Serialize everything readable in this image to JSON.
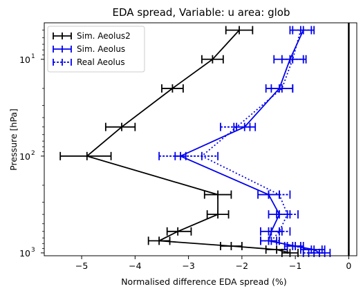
{
  "chart_data": {
    "type": "line",
    "title": "EDA spread, Variable: u area: glob",
    "xlabel": "Normalised difference EDA spread (%)",
    "ylabel": "Pressure [hPa]",
    "xlim": [
      -5.7,
      0.15
    ],
    "ylim": [
      1070,
      4.2
    ],
    "yscale": "log-inverted",
    "grid": false,
    "legend_position": "top-left",
    "x_ticks": [
      {
        "value": -5,
        "label": "−5"
      },
      {
        "value": -4,
        "label": "−4"
      },
      {
        "value": -3,
        "label": "−3"
      },
      {
        "value": -2,
        "label": "−2"
      },
      {
        "value": -1,
        "label": "−1"
      },
      {
        "value": 0,
        "label": "0"
      }
    ],
    "y_ticks": [
      {
        "value": 10,
        "base": "10",
        "exp": "1"
      },
      {
        "value": 100,
        "base": "10",
        "exp": "2"
      },
      {
        "value": 1000,
        "base": "10",
        "exp": "3"
      }
    ],
    "reference_line_x": 0,
    "series": [
      {
        "name": "Sim. Aeolus2",
        "color": "#000000",
        "dash": "solid",
        "points": [
          {
            "p": 5,
            "x": -2.05,
            "lo": -2.3,
            "hi": -1.8
          },
          {
            "p": 10,
            "x": -2.55,
            "lo": -2.75,
            "hi": -2.35
          },
          {
            "p": 20,
            "x": -3.3,
            "lo": -3.5,
            "hi": -3.1
          },
          {
            "p": 50,
            "x": -4.25,
            "lo": -4.55,
            "hi": -4.0
          },
          {
            "p": 100,
            "x": -4.9,
            "lo": -5.4,
            "hi": -4.45
          },
          {
            "p": 250,
            "x": -2.45,
            "lo": -2.7,
            "hi": -2.2
          },
          {
            "p": 400,
            "x": -2.45,
            "lo": -2.65,
            "hi": -2.25
          },
          {
            "p": 600,
            "x": -3.2,
            "lo": -3.4,
            "hi": -2.95
          },
          {
            "p": 750,
            "x": -3.55,
            "lo": -3.75,
            "hi": -3.35
          },
          {
            "p": 850,
            "x": -2.2,
            "lo": -2.4,
            "hi": -2.0
          },
          {
            "p": 925,
            "x": -1.35,
            "lo": -1.55,
            "hi": -1.15
          },
          {
            "p": 1000,
            "x": -1.1,
            "lo": -1.25,
            "hi": -0.95
          }
        ]
      },
      {
        "name": "Sim. Aeolus",
        "color": "#0000ee",
        "dash": "solid",
        "points": [
          {
            "p": 5,
            "x": -0.85,
            "lo": -1.05,
            "hi": -0.65
          },
          {
            "p": 10,
            "x": -1.1,
            "lo": -1.4,
            "hi": -0.8
          },
          {
            "p": 20,
            "x": -1.3,
            "lo": -1.55,
            "hi": -1.05
          },
          {
            "p": 50,
            "x": -1.95,
            "lo": -2.15,
            "hi": -1.75
          },
          {
            "p": 100,
            "x": -3.15,
            "lo": -3.25,
            "hi": -3.05
          },
          {
            "p": 250,
            "x": -1.5,
            "lo": -1.7,
            "hi": -1.3
          },
          {
            "p": 400,
            "x": -1.3,
            "lo": -1.5,
            "hi": -1.1
          },
          {
            "p": 600,
            "x": -1.45,
            "lo": -1.65,
            "hi": -1.25
          },
          {
            "p": 750,
            "x": -1.5,
            "lo": -1.65,
            "hi": -1.35
          },
          {
            "p": 850,
            "x": -1.0,
            "lo": -1.15,
            "hi": -0.85
          },
          {
            "p": 925,
            "x": -0.65,
            "lo": -0.85,
            "hi": -0.45
          },
          {
            "p": 1000,
            "x": -0.55,
            "lo": -0.75,
            "hi": -0.35
          }
        ]
      },
      {
        "name": "Real Aeolus",
        "color": "#0000ee",
        "dash": "dotted",
        "points": [
          {
            "p": 5,
            "x": -0.9,
            "lo": -1.1,
            "hi": -0.7
          },
          {
            "p": 10,
            "x": -1.05,
            "lo": -1.25,
            "hi": -0.85
          },
          {
            "p": 20,
            "x": -1.25,
            "lo": -1.45,
            "hi": -1.05
          },
          {
            "p": 50,
            "x": -2.1,
            "lo": -2.4,
            "hi": -1.85
          },
          {
            "p": 100,
            "x": -2.75,
            "lo": -3.55,
            "hi": -2.45
          },
          {
            "p": 250,
            "x": -1.3,
            "lo": -1.5,
            "hi": -1.1
          },
          {
            "p": 400,
            "x": -1.15,
            "lo": -1.35,
            "hi": -0.95
          },
          {
            "p": 600,
            "x": -1.3,
            "lo": -1.5,
            "hi": -1.1
          },
          {
            "p": 750,
            "x": -1.45,
            "lo": -1.65,
            "hi": -1.3
          },
          {
            "p": 850,
            "x": -1.05,
            "lo": -1.2,
            "hi": -0.9
          },
          {
            "p": 925,
            "x": -0.7,
            "lo": -0.9,
            "hi": -0.5
          },
          {
            "p": 1000,
            "x": -0.65,
            "lo": -0.85,
            "hi": -0.45
          }
        ]
      }
    ]
  }
}
